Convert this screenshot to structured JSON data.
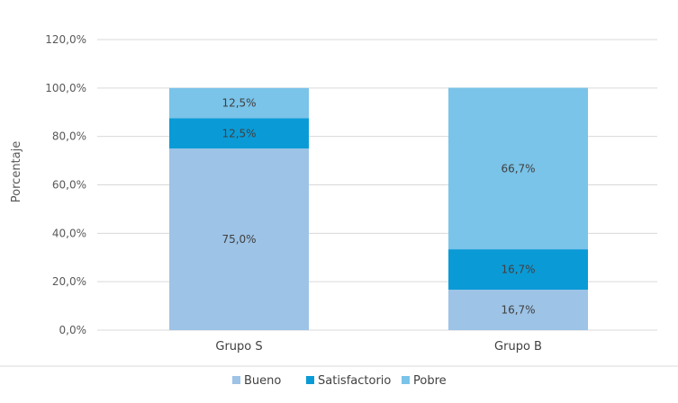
{
  "chart_data": {
    "type": "bar",
    "stacked": true,
    "categories": [
      "Grupo S",
      "Grupo B"
    ],
    "series": [
      {
        "name": "Bueno",
        "values": [
          75.0,
          16.7
        ],
        "labels": [
          "75,0%",
          "16,7%"
        ],
        "color": "#9DC3E6"
      },
      {
        "name": "Satisfactorio",
        "values": [
          12.5,
          16.7
        ],
        "labels": [
          "12,5%",
          "16,7%"
        ],
        "color": "#0A9BD7"
      },
      {
        "name": "Pobre",
        "values": [
          12.5,
          66.7
        ],
        "labels": [
          "12,5%",
          "66,7%"
        ],
        "color": "#7AC3E9"
      }
    ],
    "ylabel": "Porcentaje",
    "ylim": [
      0,
      120
    ],
    "yticks": [
      0,
      20,
      40,
      60,
      80,
      100,
      120
    ],
    "ytick_labels": [
      "0,0%",
      "20,0%",
      "40,0%",
      "60,0%",
      "80,0%",
      "100,0%",
      "120,0%"
    ],
    "grid": true,
    "legend_position": "bottom"
  }
}
